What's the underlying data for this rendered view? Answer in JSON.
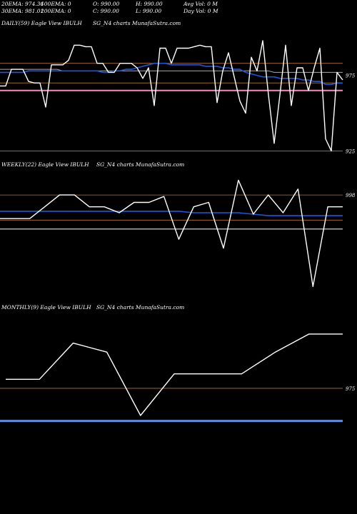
{
  "header": {
    "row1": [
      "20EMA: 974.36",
      "100EMA: 0",
      "O: 990.00",
      "H: 990.00",
      "Avg Vol: 0  M"
    ],
    "row2": [
      "30EMA: 981.01",
      "200EMA: 0",
      "C: 990.00",
      "L: 990.00",
      "Day Vol: 0  M"
    ]
  },
  "panels": [
    {
      "label_left": "DAILY(59) Eagle  View  IBULH",
      "label_right": "SG_N4  charts MunafaSutra.com"
    },
    {
      "label_left": "WEEKLY(22) Eagle  View  IBULH",
      "label_right": "SG_N4  charts MunafaSutra.com"
    },
    {
      "label_left": "MONTHLY(9) Eagle  View  IBULH",
      "label_right": "SG_N4  charts MunafaSutra.com"
    }
  ],
  "colors": {
    "price": "#ffffff",
    "ema": "#2255dd",
    "level": "#b8733a",
    "support": "#ff88bb",
    "monthly_ema": "#5b8fe0",
    "gray": "#aaaaaa"
  },
  "chart_data": [
    {
      "type": "line",
      "name": "daily",
      "ylim": [
        920,
        1006
      ],
      "yticks": [
        975,
        925
      ],
      "price": [
        968,
        968,
        979,
        979,
        979,
        971,
        970,
        970,
        954,
        982,
        982,
        982,
        985,
        995,
        995,
        994,
        994,
        983,
        983,
        977,
        977,
        983,
        983,
        983,
        980,
        973,
        980,
        955,
        993,
        993,
        983,
        993,
        993,
        993,
        994,
        995,
        994,
        994,
        957,
        978,
        990,
        974,
        958,
        950,
        987,
        978,
        998,
        962,
        930,
        962,
        995,
        955,
        980,
        980,
        965,
        980,
        993,
        933,
        925,
        977,
        972
      ],
      "ema": [
        977,
        977,
        977,
        977,
        977,
        978,
        978,
        978,
        978,
        978,
        978,
        978,
        978,
        978,
        978,
        978,
        978,
        978,
        977,
        977,
        978,
        978,
        979,
        979,
        980,
        981,
        982,
        983,
        983,
        983,
        982,
        982,
        982,
        982,
        982,
        982,
        981,
        981,
        981,
        980,
        980,
        979,
        979,
        977,
        976,
        975,
        974,
        974,
        974,
        973,
        973,
        973,
        973,
        972,
        972,
        971,
        971,
        969,
        969,
        970,
        970
      ],
      "ema2": [
        979,
        979,
        979,
        979,
        979,
        979,
        979,
        979,
        979,
        979,
        979,
        978,
        978,
        978,
        978,
        978,
        978,
        978,
        978,
        978,
        978,
        978,
        978,
        978,
        978,
        978,
        978,
        978,
        978,
        978,
        978,
        978,
        978,
        978,
        978,
        978,
        978,
        978,
        978,
        978,
        978,
        978,
        978,
        978,
        978,
        978,
        978,
        978,
        977,
        977,
        977,
        977,
        977,
        977,
        977,
        977,
        977,
        977,
        977,
        977,
        977
      ],
      "levels": [
        983,
        970,
        925
      ],
      "support": 965
    },
    {
      "type": "line",
      "name": "weekly",
      "ylim": [
        928,
        1014
      ],
      "yticks": [
        998
      ],
      "price": [
        982,
        982,
        982,
        990,
        998,
        998,
        990,
        990,
        986,
        993,
        993,
        997,
        968,
        990,
        993,
        962,
        1008,
        985,
        998,
        986,
        1002,
        936,
        990,
        990
      ],
      "ema": [
        987,
        987,
        987,
        987,
        987,
        987,
        987,
        987,
        987,
        987,
        987,
        987,
        987,
        986,
        986,
        986,
        986,
        985,
        984,
        984,
        984,
        984,
        984,
        984
      ],
      "levels": [
        998,
        981
      ],
      "gray": 975
    },
    {
      "type": "line",
      "name": "monthly",
      "ylim": [
        945,
        1016
      ],
      "yticks": [
        975
      ],
      "price": [
        980,
        980,
        1000,
        995,
        960,
        983,
        983,
        983,
        995,
        1005,
        1005
      ],
      "levels": [
        975
      ],
      "ema_flat": 957
    }
  ]
}
